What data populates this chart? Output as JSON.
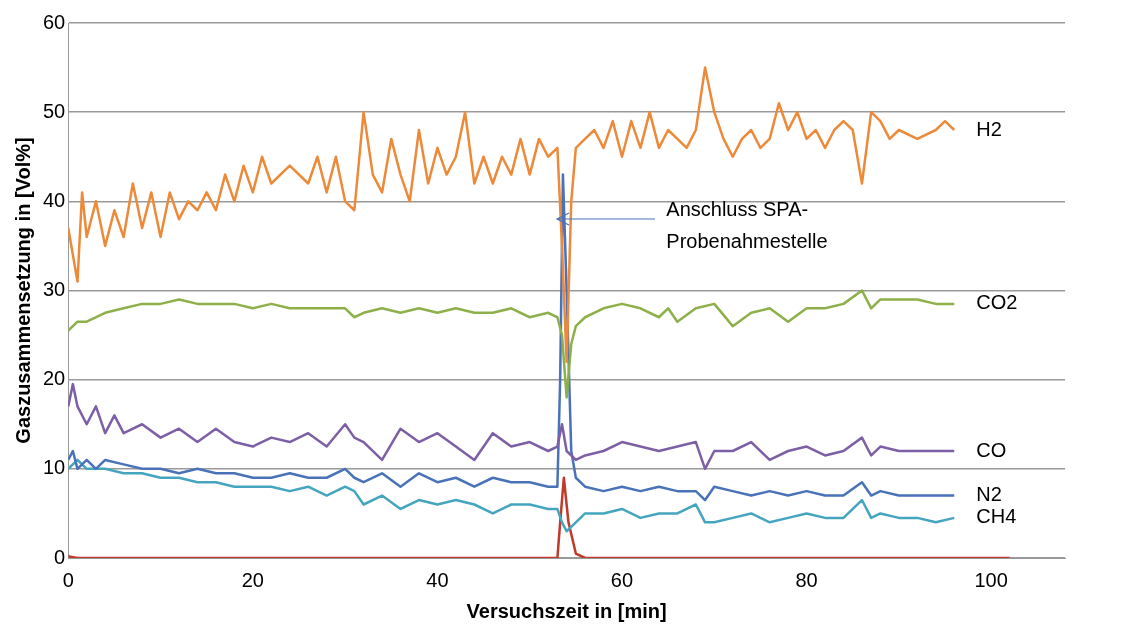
{
  "chart_data": {
    "type": "line",
    "xlabel": "Versuchszeit in [min]",
    "ylabel": "Gaszusammensetzung in [Vol%]",
    "xlim": [
      0,
      108
    ],
    "xticks": [
      0,
      20,
      40,
      60,
      80,
      100
    ],
    "ylim": [
      0,
      60
    ],
    "yticks": [
      0,
      10,
      20,
      30,
      40,
      50,
      60
    ],
    "grid": "y",
    "legend": false,
    "marker": "none",
    "line_style": "solid",
    "annotations": [
      "Anschluss SPA-\nProbenahmestelle"
    ],
    "series": [
      {
        "name": "H2",
        "color": "#ed8a3a",
        "x": [
          0,
          0.5,
          1,
          1.5,
          2,
          3,
          4,
          5,
          6,
          7,
          8,
          9,
          10,
          11,
          12,
          13,
          14,
          15,
          16,
          17,
          18,
          19,
          20,
          21,
          22,
          24,
          26,
          27,
          28,
          29,
          30,
          31,
          32,
          33,
          34,
          35,
          36,
          37,
          38,
          39,
          40,
          41,
          42,
          43,
          44,
          45,
          46,
          47,
          48,
          49,
          50,
          51,
          52,
          53,
          53.5,
          54,
          54.5,
          55,
          56,
          57,
          58,
          59,
          60,
          61,
          62,
          63,
          64,
          65,
          66,
          67,
          68,
          69,
          70,
          71,
          72,
          73,
          74,
          75,
          76,
          77,
          78,
          79,
          80,
          81,
          82,
          83,
          84,
          85,
          86,
          87,
          88,
          89,
          90,
          92,
          94,
          95,
          96
        ],
        "values": [
          37,
          34,
          31,
          41,
          36,
          40,
          35,
          39,
          36,
          42,
          37,
          41,
          36,
          41,
          38,
          40,
          39,
          41,
          39,
          43,
          40,
          44,
          41,
          45,
          42,
          44,
          42,
          45,
          41,
          45,
          40,
          39,
          50,
          43,
          41,
          47,
          43,
          40,
          48,
          42,
          46,
          43,
          45,
          50,
          42,
          45,
          42,
          45,
          43,
          47,
          43,
          47,
          45,
          46,
          35,
          22,
          40,
          46,
          47,
          48,
          46,
          49,
          45,
          49,
          46,
          50,
          46,
          48,
          47,
          46,
          48,
          55,
          50,
          47,
          45,
          47,
          48,
          46,
          47,
          51,
          48,
          50,
          47,
          48,
          46,
          48,
          49,
          48,
          42,
          50,
          49,
          47,
          48,
          47,
          48,
          49,
          48
        ]
      },
      {
        "name": "CO2",
        "color": "#8db04a",
        "x": [
          0,
          1,
          2,
          4,
          6,
          8,
          10,
          12,
          14,
          16,
          18,
          20,
          22,
          24,
          26,
          28,
          30,
          31,
          32,
          34,
          36,
          38,
          40,
          42,
          44,
          46,
          48,
          50,
          52,
          53,
          53.5,
          54,
          54.5,
          55,
          56,
          58,
          60,
          62,
          64,
          65,
          66,
          68,
          70,
          72,
          74,
          76,
          78,
          80,
          82,
          84,
          86,
          87,
          88,
          90,
          92,
          94,
          96
        ],
        "values": [
          25.5,
          26.5,
          26.5,
          27.5,
          28,
          28.5,
          28.5,
          29,
          28.5,
          28.5,
          28.5,
          28,
          28.5,
          28,
          28,
          28,
          28,
          27,
          27.5,
          28,
          27.5,
          28,
          27.5,
          28,
          27.5,
          27.5,
          28,
          27,
          27.5,
          27,
          25,
          18,
          24,
          26,
          27,
          28,
          28.5,
          28,
          27,
          28,
          26.5,
          28,
          28.5,
          26,
          27.5,
          28,
          26.5,
          28,
          28,
          28.5,
          30,
          28,
          29,
          29,
          29,
          28.5,
          28.5
        ]
      },
      {
        "name": "CO",
        "color": "#7d5fa6",
        "x": [
          0,
          0.5,
          1,
          2,
          3,
          4,
          5,
          6,
          8,
          10,
          12,
          14,
          16,
          18,
          20,
          22,
          24,
          26,
          28,
          30,
          31,
          32,
          34,
          36,
          38,
          40,
          42,
          44,
          46,
          48,
          50,
          52,
          53,
          53.5,
          54,
          55,
          56,
          58,
          60,
          62,
          64,
          66,
          68,
          69,
          70,
          72,
          74,
          76,
          78,
          80,
          82,
          84,
          86,
          87,
          88,
          90,
          92,
          94,
          96
        ],
        "values": [
          17,
          19.5,
          17,
          15,
          17,
          14,
          16,
          14,
          15,
          13.5,
          14.5,
          13,
          14.5,
          13,
          12.5,
          13.5,
          13,
          14,
          12.5,
          15,
          13.5,
          13,
          11,
          14.5,
          13,
          14,
          12.5,
          11,
          14,
          12.5,
          13,
          12,
          12.5,
          15,
          12,
          11,
          11.5,
          12,
          13,
          12.5,
          12,
          12.5,
          13,
          10,
          12,
          12,
          13,
          11,
          12,
          12.5,
          11.5,
          12,
          13.5,
          11.5,
          12.5,
          12,
          12,
          12,
          12
        ]
      },
      {
        "name": "N2",
        "color": "#4a72b8",
        "x": [
          0,
          0.5,
          1,
          2,
          3,
          4,
          6,
          8,
          10,
          12,
          14,
          16,
          18,
          20,
          22,
          24,
          26,
          28,
          30,
          31,
          32,
          34,
          36,
          38,
          40,
          42,
          44,
          46,
          48,
          50,
          52,
          53,
          53.3,
          53.6,
          54,
          54.5,
          55,
          56,
          58,
          60,
          62,
          64,
          66,
          68,
          69,
          70,
          72,
          74,
          76,
          78,
          80,
          82,
          84,
          86,
          87,
          88,
          90,
          92,
          94,
          96
        ],
        "values": [
          11,
          12,
          10,
          11,
          10,
          11,
          10.5,
          10,
          10,
          9.5,
          10,
          9.5,
          9.5,
          9,
          9,
          9.5,
          9,
          9,
          10,
          9,
          8.5,
          9.5,
          8,
          9.5,
          8.5,
          9,
          8,
          9,
          8.5,
          8.5,
          8,
          8,
          20,
          43,
          30,
          12,
          9,
          8,
          7.5,
          8,
          7.5,
          8,
          7.5,
          7.5,
          6.5,
          8,
          7.5,
          7,
          7.5,
          7,
          7.5,
          7,
          7,
          8.5,
          7,
          7.5,
          7,
          7,
          7,
          7
        ]
      },
      {
        "name": "CH4",
        "color": "#45a5be",
        "x": [
          0,
          1,
          2,
          4,
          6,
          8,
          10,
          12,
          14,
          16,
          18,
          20,
          22,
          24,
          26,
          28,
          30,
          31,
          32,
          34,
          36,
          38,
          40,
          42,
          44,
          46,
          48,
          50,
          52,
          53,
          53.5,
          54,
          55,
          56,
          58,
          60,
          62,
          64,
          66,
          68,
          69,
          70,
          72,
          74,
          76,
          78,
          80,
          82,
          84,
          86,
          87,
          88,
          90,
          92,
          94,
          96
        ],
        "values": [
          10,
          11,
          10,
          10,
          9.5,
          9.5,
          9,
          9,
          8.5,
          8.5,
          8,
          8,
          8,
          7.5,
          8,
          7,
          8,
          7.5,
          6,
          7,
          5.5,
          6.5,
          6,
          6.5,
          6,
          5,
          6,
          6,
          5.5,
          5.5,
          4,
          3,
          4,
          5,
          5,
          5.5,
          4.5,
          5,
          5,
          6,
          4,
          4,
          4.5,
          5,
          4,
          4.5,
          5,
          4.5,
          4.5,
          6.5,
          4.5,
          5,
          4.5,
          4.5,
          4,
          4.5
        ]
      },
      {
        "color": "#c0392b",
        "x": [
          0,
          0.5,
          1,
          53,
          53.3,
          53.7,
          54.2,
          55,
          56,
          102
        ],
        "values": [
          0.2,
          0.1,
          0,
          0,
          4,
          9,
          4,
          0.5,
          0,
          0
        ]
      }
    ]
  }
}
